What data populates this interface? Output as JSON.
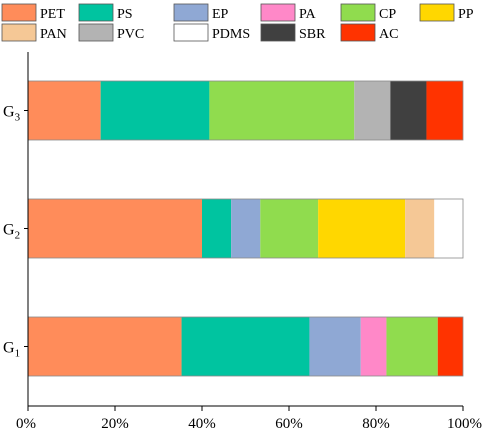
{
  "chart_data": {
    "type": "bar",
    "orientation": "horizontal",
    "stacked": true,
    "categories": [
      {
        "main": "G",
        "sub": "3"
      },
      {
        "main": "G",
        "sub": "2"
      },
      {
        "main": "G",
        "sub": "1"
      }
    ],
    "xlim": [
      0,
      100
    ],
    "xticks": [
      "0%",
      "20%",
      "40%",
      "60%",
      "80%",
      "100%"
    ],
    "grid": false,
    "legend_position": "top",
    "series": [
      {
        "name": "PET",
        "color": "#FF8C5A",
        "values": [
          16.7,
          40.0,
          35.3
        ]
      },
      {
        "name": "PS",
        "color": "#00C4A0",
        "values": [
          25.0,
          6.7,
          29.4
        ]
      },
      {
        "name": "EP",
        "color": "#8FA8D4",
        "values": [
          0,
          6.7,
          11.8
        ]
      },
      {
        "name": "PA",
        "color": "#FF88C8",
        "values": [
          0,
          0,
          5.9
        ]
      },
      {
        "name": "CP",
        "color": "#90DC4E",
        "values": [
          33.3,
          13.3,
          11.8
        ]
      },
      {
        "name": "PP",
        "color": "#FFD700",
        "values": [
          0,
          20.0,
          0
        ]
      },
      {
        "name": "PAN",
        "color": "#F5C896",
        "values": [
          0,
          6.7,
          0
        ]
      },
      {
        "name": "PVC",
        "color": "#B3B3B3",
        "values": [
          8.3,
          0,
          0
        ]
      },
      {
        "name": "PDMS",
        "color": "#FFFFFF",
        "values": [
          0,
          6.6,
          0
        ]
      },
      {
        "name": "SBR",
        "color": "#404040",
        "values": [
          8.3,
          0,
          0
        ]
      },
      {
        "name": "AC",
        "color": "#FF3300",
        "values": [
          8.4,
          0,
          5.8
        ]
      }
    ]
  }
}
